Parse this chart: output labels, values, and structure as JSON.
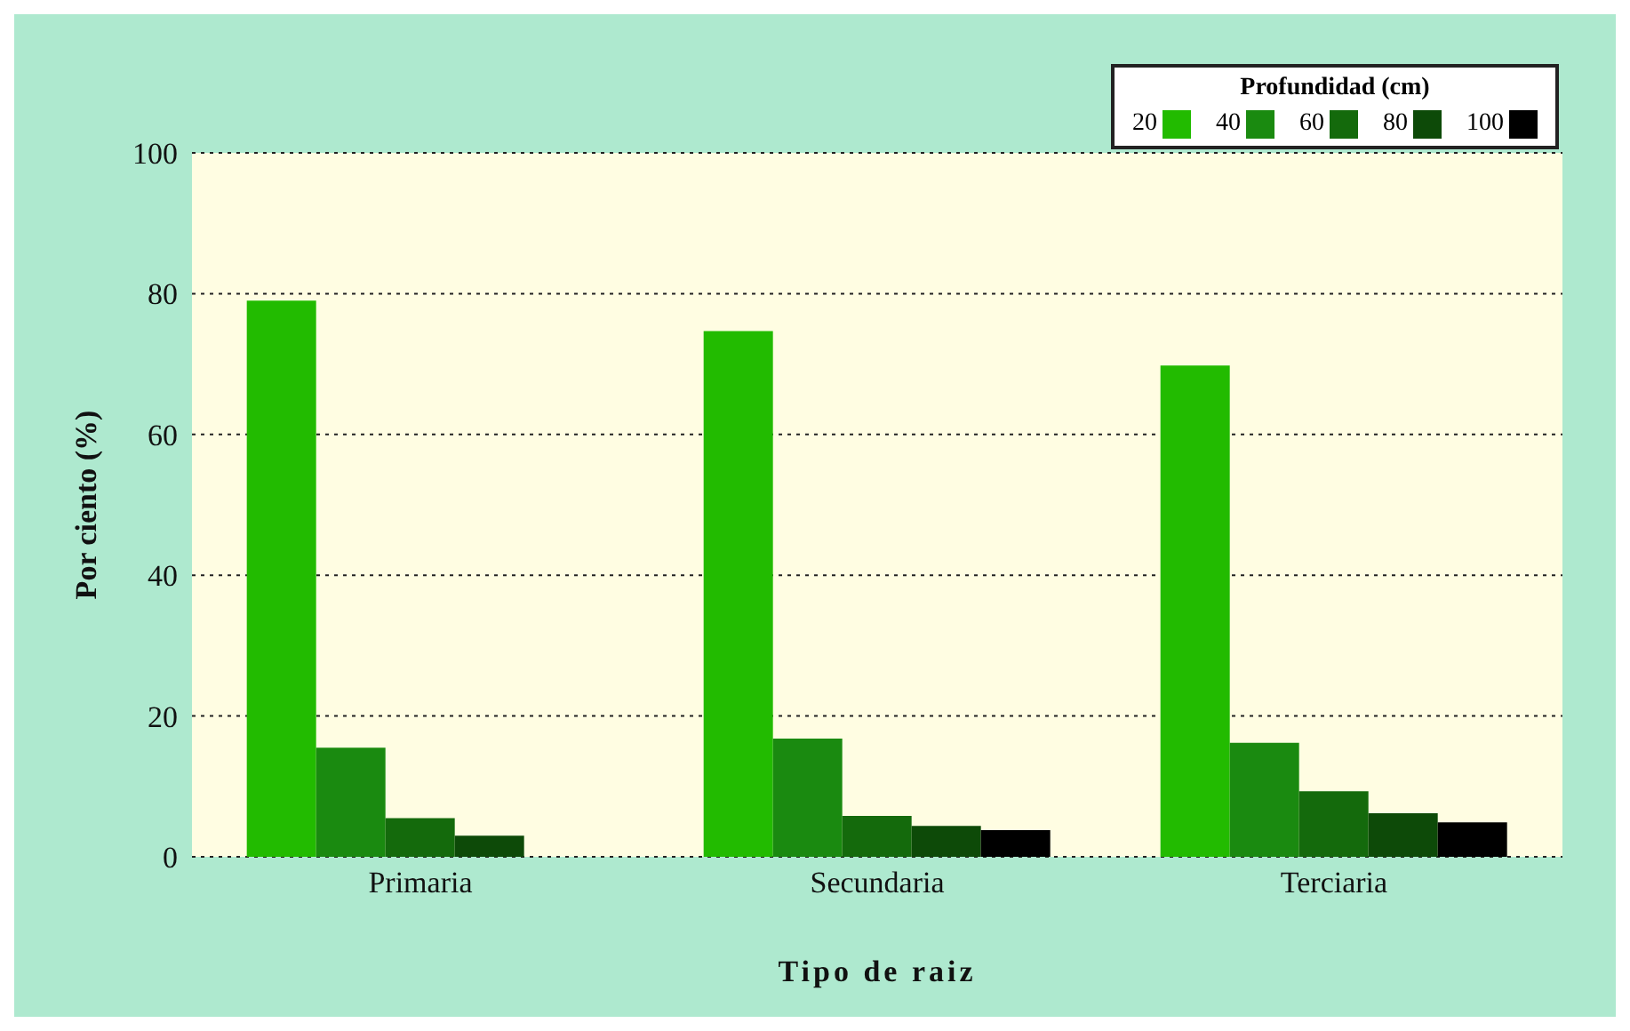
{
  "chart_data": {
    "type": "bar",
    "xlabel": "Tipo de raiz",
    "ylabel": "Por ciento (%)",
    "legend_title": "Profundidad (cm)",
    "categories": [
      "Primaria",
      "Secundaria",
      "Terciaria"
    ],
    "series": [
      {
        "name": "20",
        "color": "#22bb00",
        "values": [
          79,
          74.7,
          69.8
        ]
      },
      {
        "name": "40",
        "color": "#1a8a10",
        "values": [
          15.5,
          16.8,
          16.2
        ]
      },
      {
        "name": "60",
        "color": "#146a0c",
        "values": [
          5.5,
          5.8,
          9.3
        ]
      },
      {
        "name": "80",
        "color": "#0d4a08",
        "values": [
          3,
          4.4,
          6.2
        ]
      },
      {
        "name": "100",
        "color": "#000000",
        "values": [
          0,
          3.8,
          4.9
        ]
      }
    ],
    "ylim": [
      0,
      100
    ],
    "yticks": [
      0,
      20,
      40,
      60,
      80,
      100
    ],
    "grid": "y",
    "legend": "top right"
  }
}
